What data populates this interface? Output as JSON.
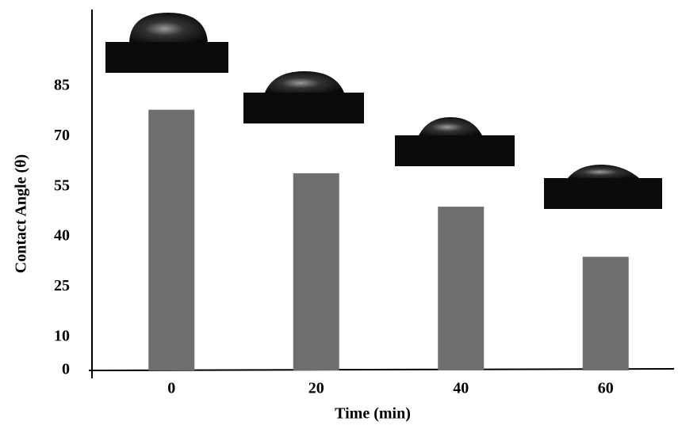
{
  "chart_data": {
    "type": "bar",
    "x_label": "Time (min)",
    "y_label": "Contact Angle (θ)",
    "categories": [
      "0",
      "20",
      "40",
      "60"
    ],
    "values": [
      78,
      59,
      49,
      34
    ],
    "color": "#6e6e6e",
    "ylim": [
      0,
      108
    ],
    "yticks": [
      0,
      10,
      25,
      40,
      55,
      70,
      85
    ],
    "grid": false
  }
}
